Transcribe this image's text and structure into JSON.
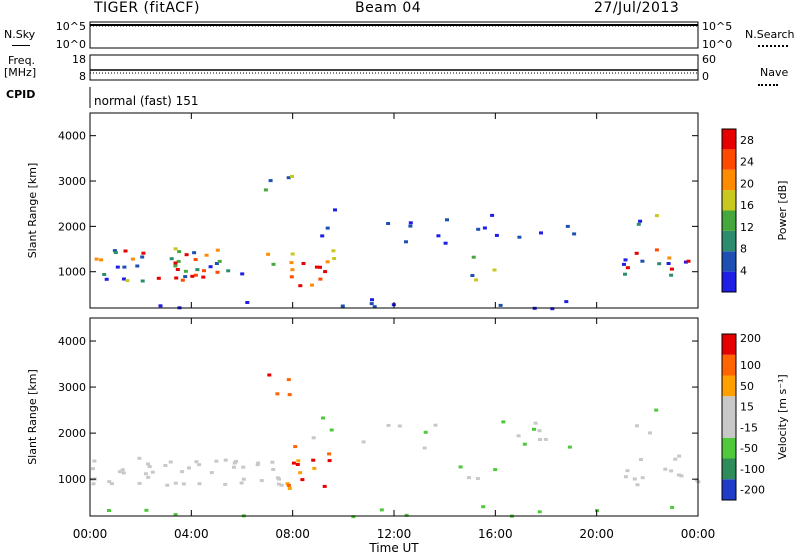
{
  "header": {
    "radar": "TIGER (fitACF)",
    "beam": "Beam 04",
    "date": "27/Jul/2013"
  },
  "strip_labels": {
    "nsky": "N.Sky",
    "nsearch": "N.Search",
    "freq": "Freq.",
    "freq_unit": "[MHz]",
    "nave": "Nave",
    "cpid": "CPID"
  },
  "cpid_text": "normal (fast) 151",
  "colors": {
    "power_scale": [
      "#1e1ee6",
      "#1e50b4",
      "#2e8c6e",
      "#46a83c",
      "#c8c81e",
      "#ff8c00",
      "#ff4a00",
      "#e60000"
    ],
    "velocity_scale": [
      "#e60000",
      "#ff6400",
      "#ffa000",
      "#c8c8c8",
      "#c8c8c8",
      "#50c83c",
      "#2e8c5a",
      "#1e3cc8"
    ],
    "axis": "#000000"
  },
  "chart_data": [
    {
      "type": "line",
      "title": "N.Sky / N.Search",
      "ylabel_left": "N.Sky",
      "ylabel_right": "N.Search",
      "left_ticks": [
        "10^5",
        "10^0"
      ],
      "right_ticks": [
        "10^5",
        "10^0"
      ]
    },
    {
      "type": "line",
      "ylabel_left": "Freq. [MHz]",
      "ylabel_right": "Nave",
      "left_ticks": [
        "18",
        "8"
      ],
      "right_ticks": [
        "60",
        "0"
      ],
      "ylim_left": [
        8,
        18
      ],
      "ylim_right": [
        0,
        60
      ]
    },
    {
      "type": "heatmap",
      "title": "",
      "xlabel": "",
      "ylabel": "Slant Range [km]",
      "colorbar_label": "Power [dB]",
      "y_ticks": [
        "1000",
        "2000",
        "3000",
        "4000"
      ],
      "ylim": [
        200,
        4500
      ],
      "colorbar_ticks": [
        "4",
        "8",
        "12",
        "16",
        "20",
        "24",
        "28"
      ],
      "colorbar_range": [
        0,
        30
      ]
    },
    {
      "type": "heatmap",
      "title": "",
      "xlabel": "Time UT",
      "ylabel": "Slant Range [km]",
      "colorbar_label": "Velocity [m s⁻¹]",
      "y_ticks": [
        "1000",
        "2000",
        "3000",
        "4000"
      ],
      "ylim": [
        200,
        4500
      ],
      "colorbar_ticks": [
        "200",
        "100",
        "50",
        "15",
        "-15",
        "-50",
        "-100",
        "-200"
      ],
      "x_ticks": [
        "00:00",
        "04:00",
        "08:00",
        "12:00",
        "16:00",
        "20:00",
        "00:00"
      ],
      "x_range_hours": [
        0,
        24
      ]
    }
  ]
}
